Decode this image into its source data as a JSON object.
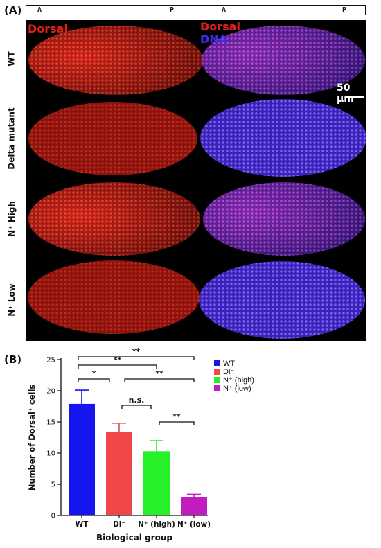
{
  "panel_a": {
    "letter": "(A)",
    "ap_axis": [
      {
        "label": "A"
      },
      {
        "label": "P"
      },
      {
        "label": "A"
      },
      {
        "label": "P"
      }
    ],
    "stain_left": "Dorsal",
    "stain_right_1": "Dorsal",
    "stain_right_2": "DNA",
    "scale_bar": "50 μm",
    "rows": [
      "WT",
      "Delta mutant",
      "N⁺ High",
      "N⁺ Low"
    ],
    "colors": {
      "dorsal": "#e0201a",
      "dna": "#3b2ee8",
      "merge": "#a040d8"
    }
  },
  "panel_b": {
    "letter": "(B)"
  },
  "chart_data": {
    "type": "bar",
    "categories": [
      "WT",
      "Dl⁻",
      "N⁺ (high)",
      "N⁺ (low)"
    ],
    "values": [
      17.9,
      13.4,
      10.3,
      3.0
    ],
    "errors": [
      2.2,
      1.4,
      1.7,
      0.4
    ],
    "colors": [
      "#1515f0",
      "#f04848",
      "#28f028",
      "#c01cc0"
    ],
    "xlabel": "Biological group",
    "ylabel": "Number of Dorsal⁺ cells",
    "ylim": [
      0,
      25
    ],
    "yticks": [
      0,
      5,
      10,
      15,
      20,
      25
    ],
    "legend": {
      "placement": "top-right",
      "entries": [
        "WT",
        "Dl⁻",
        "N⁺ (high)",
        "N⁺ (low)"
      ]
    },
    "significance": [
      {
        "pair": [
          0,
          3
        ],
        "label": "**"
      },
      {
        "pair": [
          0,
          2
        ],
        "label": "**"
      },
      {
        "pair": [
          0,
          1
        ],
        "label": "*"
      },
      {
        "pair": [
          1,
          3
        ],
        "label": "**"
      },
      {
        "pair": [
          1,
          2
        ],
        "label": "n.s."
      },
      {
        "pair": [
          2,
          3
        ],
        "label": "**"
      }
    ]
  }
}
